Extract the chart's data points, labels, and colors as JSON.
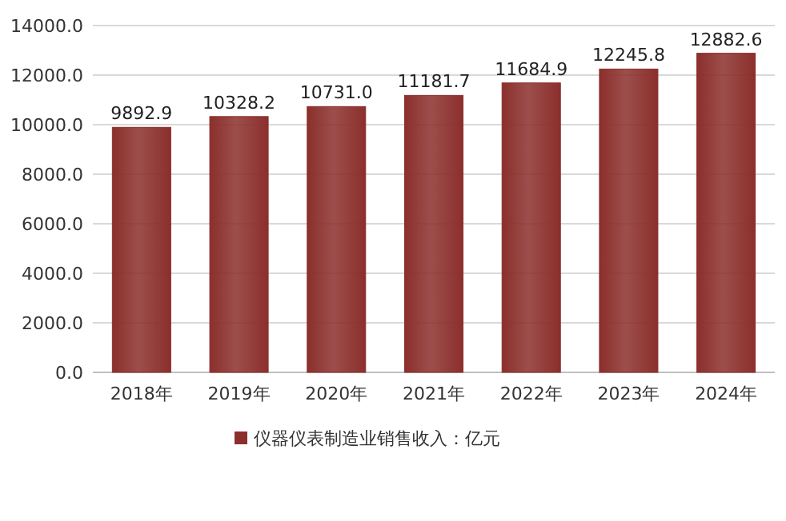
{
  "chart_data": {
    "type": "bar",
    "categories": [
      "2018年",
      "2019年",
      "2020年",
      "2021年",
      "2022年",
      "2023年",
      "2024年"
    ],
    "series": [
      {
        "name": "仪器仪表制造业销售收入：亿元",
        "color": "#8b2f2c",
        "values": [
          9892.9,
          10328.2,
          10731.0,
          11181.7,
          11684.9,
          12245.8,
          12882.6
        ],
        "value_labels": [
          "9892.9",
          "10328.2",
          "10731.0",
          "11181.7",
          "11684.9",
          "12245.8",
          "12882.6"
        ]
      }
    ],
    "ylim": [
      0,
      14000
    ],
    "yticks": [
      {
        "value": 0,
        "label": "0.0"
      },
      {
        "value": 2000,
        "label": "2000.0"
      },
      {
        "value": 4000,
        "label": "4000.0"
      },
      {
        "value": 6000,
        "label": "6000.0"
      },
      {
        "value": 8000,
        "label": "8000.0"
      },
      {
        "value": 10000,
        "label": "10000.0"
      },
      {
        "value": 12000,
        "label": "12000.0"
      },
      {
        "value": 14000,
        "label": "14000.0"
      }
    ],
    "grid": "y",
    "legend": "bottom"
  }
}
